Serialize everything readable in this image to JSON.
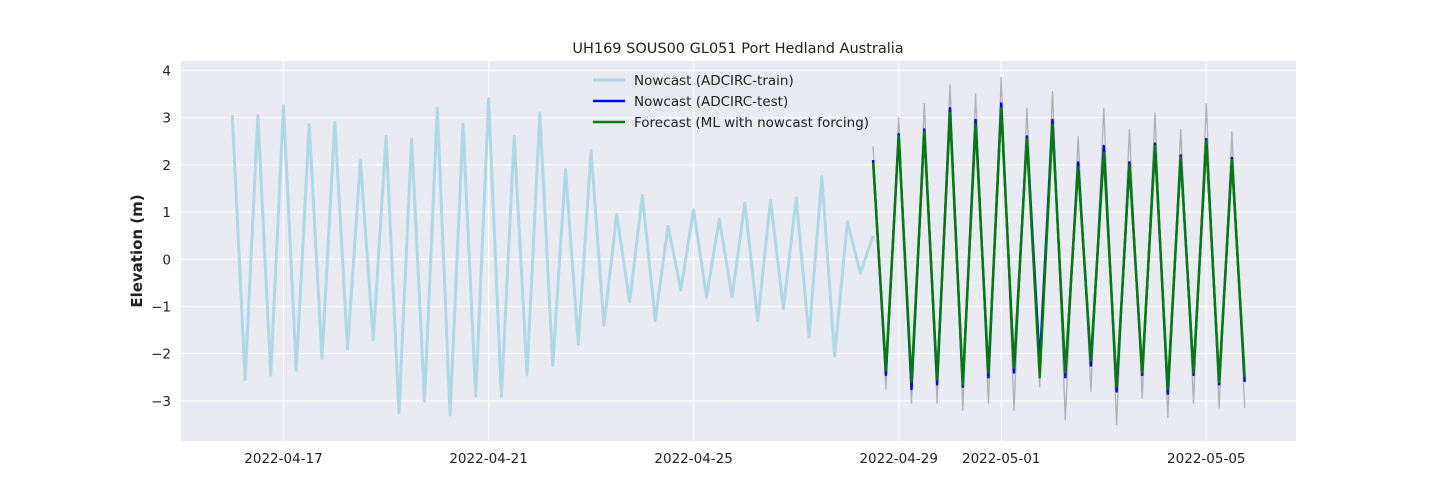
{
  "chart_data": {
    "type": "line",
    "title": "UH169 SOUS00 GL051 Port Hedland Australia",
    "xlabel": "",
    "ylabel": "Elevation (m)",
    "xlim": [
      "2022-04-15T00:00",
      "2022-05-06T18:00"
    ],
    "ylim": [
      -3.85,
      4.2
    ],
    "x_ticks": [
      "2022-04-17",
      "2022-04-21",
      "2022-04-25",
      "2022-04-29",
      "2022-05-01",
      "2022-05-05"
    ],
    "y_ticks": [
      -3,
      -2,
      -1,
      0,
      1,
      2,
      3,
      4
    ],
    "grid": true,
    "legend": "top-center",
    "series": [
      {
        "name": "Nowcast (ADCIRC-train)",
        "color": "#add8e6",
        "x": [
          "2022-04-16T00:00",
          "2022-04-16T06:00",
          "2022-04-16T12:00",
          "2022-04-16T18:00",
          "2022-04-17T00:00",
          "2022-04-17T06:00",
          "2022-04-17T12:00",
          "2022-04-17T18:00",
          "2022-04-18T00:00",
          "2022-04-18T06:00",
          "2022-04-18T12:00",
          "2022-04-18T18:00",
          "2022-04-19T00:00",
          "2022-04-19T06:00",
          "2022-04-19T12:00",
          "2022-04-19T18:00",
          "2022-04-20T00:00",
          "2022-04-20T06:00",
          "2022-04-20T12:00",
          "2022-04-20T18:00",
          "2022-04-21T00:00",
          "2022-04-21T06:00",
          "2022-04-21T12:00",
          "2022-04-21T18:00",
          "2022-04-22T00:00",
          "2022-04-22T06:00",
          "2022-04-22T12:00",
          "2022-04-22T18:00",
          "2022-04-23T00:00",
          "2022-04-23T06:00",
          "2022-04-23T12:00",
          "2022-04-23T18:00",
          "2022-04-24T00:00",
          "2022-04-24T06:00",
          "2022-04-24T12:00",
          "2022-04-24T18:00",
          "2022-04-25T00:00",
          "2022-04-25T06:00",
          "2022-04-25T12:00",
          "2022-04-25T18:00",
          "2022-04-26T00:00",
          "2022-04-26T06:00",
          "2022-04-26T12:00",
          "2022-04-26T18:00",
          "2022-04-27T00:00",
          "2022-04-27T06:00",
          "2022-04-27T12:00",
          "2022-04-27T18:00",
          "2022-04-28T00:00",
          "2022-04-28T06:00",
          "2022-04-28T12:00"
        ],
        "values": [
          3.05,
          -2.55,
          3.05,
          -2.45,
          3.25,
          -2.35,
          2.85,
          -2.1,
          2.9,
          -1.9,
          2.1,
          -1.7,
          2.6,
          -3.25,
          2.55,
          -3.0,
          3.2,
          -3.3,
          2.85,
          -2.9,
          3.4,
          -2.9,
          2.6,
          -2.45,
          3.1,
          -2.25,
          1.9,
          -1.8,
          2.3,
          -1.4,
          0.95,
          -0.9,
          1.35,
          -1.3,
          0.7,
          -0.65,
          1.05,
          -0.8,
          0.85,
          -0.8,
          1.2,
          -1.3,
          1.25,
          -1.05,
          1.3,
          -1.65,
          1.75,
          -2.05,
          0.8,
          -0.3,
          0.5
        ]
      },
      {
        "name": "",
        "color": "#b0b0b0",
        "x": [
          "2022-04-28T12:00",
          "2022-04-28T18:00",
          "2022-04-29T00:00",
          "2022-04-29T06:00",
          "2022-04-29T12:00",
          "2022-04-29T18:00",
          "2022-04-30T00:00",
          "2022-04-30T06:00",
          "2022-04-30T12:00",
          "2022-04-30T18:00",
          "2022-05-01T00:00",
          "2022-05-01T06:00",
          "2022-05-01T12:00",
          "2022-05-01T18:00",
          "2022-05-02T00:00",
          "2022-05-02T06:00",
          "2022-05-02T12:00",
          "2022-05-02T18:00",
          "2022-05-03T00:00",
          "2022-05-03T06:00",
          "2022-05-03T12:00",
          "2022-05-03T18:00",
          "2022-05-04T00:00",
          "2022-05-04T06:00",
          "2022-05-04T12:00",
          "2022-05-04T18:00",
          "2022-05-05T00:00",
          "2022-05-05T06:00",
          "2022-05-05T12:00",
          "2022-05-05T18:00"
        ],
        "values": [
          2.4,
          -2.75,
          3.0,
          -3.05,
          3.3,
          -3.05,
          3.7,
          -3.2,
          3.5,
          -3.05,
          3.85,
          -3.2,
          3.2,
          -2.7,
          3.55,
          -3.4,
          2.6,
          -2.8,
          3.2,
          -3.5,
          2.75,
          -2.95,
          3.1,
          -3.35,
          2.75,
          -3.05,
          3.3,
          -3.15,
          2.7,
          -3.15
        ]
      },
      {
        "name": "Nowcast (ADCIRC-test)",
        "color": "#0000ff",
        "x": [
          "2022-04-28T12:00",
          "2022-04-28T18:00",
          "2022-04-29T00:00",
          "2022-04-29T06:00",
          "2022-04-29T12:00",
          "2022-04-29T18:00",
          "2022-04-30T00:00",
          "2022-04-30T06:00",
          "2022-04-30T12:00",
          "2022-04-30T18:00",
          "2022-05-01T00:00",
          "2022-05-01T06:00",
          "2022-05-01T12:00",
          "2022-05-01T18:00",
          "2022-05-02T00:00",
          "2022-05-02T06:00",
          "2022-05-02T12:00",
          "2022-05-02T18:00",
          "2022-05-03T00:00",
          "2022-05-03T06:00",
          "2022-05-03T12:00",
          "2022-05-03T18:00",
          "2022-05-04T00:00",
          "2022-05-04T06:00",
          "2022-05-04T12:00",
          "2022-05-04T18:00",
          "2022-05-05T00:00",
          "2022-05-05T06:00",
          "2022-05-05T12:00",
          "2022-05-05T18:00"
        ],
        "values": [
          2.1,
          -2.45,
          2.65,
          -2.75,
          2.75,
          -2.65,
          3.2,
          -2.7,
          2.95,
          -2.5,
          3.3,
          -2.4,
          2.6,
          -2.2,
          2.95,
          -2.5,
          2.05,
          -2.25,
          2.4,
          -2.8,
          2.05,
          -2.45,
          2.45,
          -2.85,
          2.2,
          -2.45,
          2.55,
          -2.65,
          2.15,
          -2.6
        ]
      },
      {
        "name": "Forecast (ML with nowcast forcing)",
        "color": "#008000",
        "x": [
          "2022-04-28T12:00",
          "2022-04-28T18:00",
          "2022-04-29T00:00",
          "2022-04-29T06:00",
          "2022-04-29T12:00",
          "2022-04-29T18:00",
          "2022-04-30T00:00",
          "2022-04-30T06:00",
          "2022-04-30T12:00",
          "2022-04-30T18:00",
          "2022-05-01T00:00",
          "2022-05-01T06:00",
          "2022-05-01T12:00",
          "2022-05-01T18:00",
          "2022-05-02T00:00",
          "2022-05-02T06:00",
          "2022-05-02T12:00",
          "2022-05-02T18:00",
          "2022-05-03T00:00",
          "2022-05-03T06:00",
          "2022-05-03T12:00",
          "2022-05-03T18:00",
          "2022-05-04T00:00",
          "2022-05-04T06:00",
          "2022-05-04T12:00",
          "2022-05-04T18:00",
          "2022-05-05T00:00",
          "2022-05-05T06:00",
          "2022-05-05T12:00",
          "2022-05-05T18:00"
        ],
        "values": [
          2.05,
          -2.35,
          2.6,
          -2.6,
          2.7,
          -2.55,
          3.1,
          -2.65,
          2.85,
          -2.4,
          3.2,
          -2.3,
          2.55,
          -2.5,
          2.85,
          -2.4,
          1.95,
          -2.15,
          2.25,
          -2.7,
          2.0,
          -2.4,
          2.4,
          -2.75,
          2.15,
          -2.4,
          2.5,
          -2.6,
          2.1,
          -2.5
        ]
      }
    ]
  }
}
